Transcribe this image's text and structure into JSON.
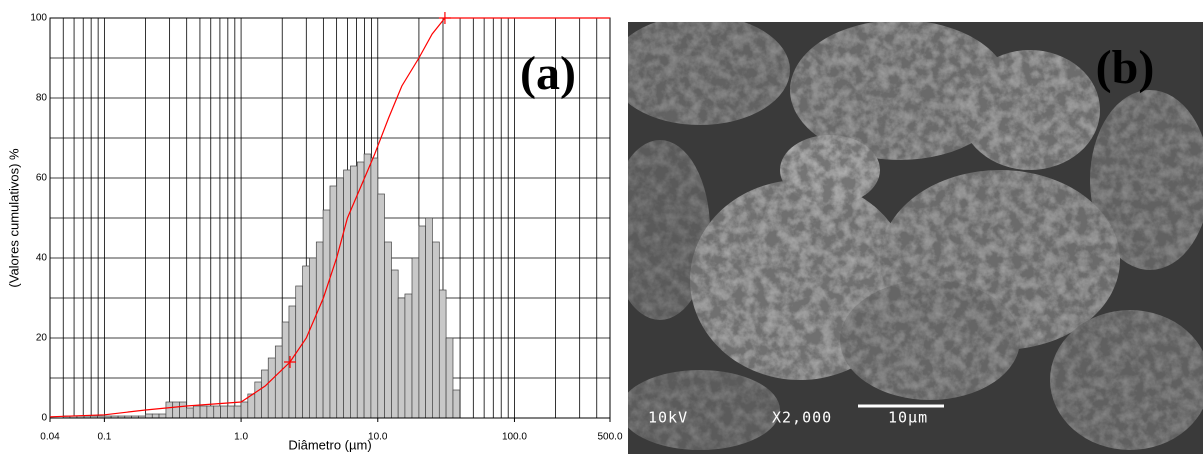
{
  "chart_data": {
    "type": "histogram",
    "panel_label": "(a)",
    "ylabel": "(Valores cumulativos) %",
    "xlabel": "Diâmetro (µm)",
    "xscale": "log",
    "xlim": [
      0.04,
      500
    ],
    "xticks": [
      0.04,
      0.1,
      {
        "value": 1,
        "label": "1.0"
      },
      {
        "value": 10,
        "label": "10.0"
      },
      {
        "value": 100,
        "label": "100.0"
      },
      {
        "value": 500,
        "label": "500.0"
      }
    ],
    "ylim": [
      0,
      100
    ],
    "yticks": [
      0,
      20,
      40,
      60,
      80,
      100
    ],
    "yminor": [
      10,
      30,
      50,
      70,
      90
    ],
    "grid": true,
    "color": "#c8c8c8",
    "bins": [
      0.05,
      0.056,
      0.063,
      0.071,
      0.079,
      0.089,
      0.1,
      0.112,
      0.126,
      0.141,
      0.158,
      0.178,
      0.2,
      0.224,
      0.251,
      0.282,
      0.316,
      0.355,
      0.398,
      0.447,
      0.501,
      0.562,
      0.631,
      0.708,
      0.794,
      0.891,
      1.0,
      1.12,
      1.26,
      1.41,
      1.58,
      1.78,
      2.0,
      2.24,
      2.51,
      2.82,
      3.16,
      3.55,
      3.98,
      4.47,
      5.01,
      5.62,
      6.31,
      7.08,
      7.94,
      8.91,
      10,
      11.2,
      12.6,
      14.1,
      15.8,
      17.8,
      20,
      22.4,
      25.1,
      28.2,
      31.6,
      35.5,
      39.8
    ],
    "values": [
      0.5,
      0.5,
      0.5,
      0.5,
      0.5,
      0.5,
      0.5,
      0.5,
      0.5,
      0.5,
      0.5,
      0.5,
      1,
      1,
      1,
      4,
      4,
      4,
      2.5,
      3,
      3,
      3,
      3,
      3,
      3,
      3,
      4,
      6,
      9,
      12,
      15,
      18,
      24,
      28,
      33,
      38,
      40,
      44,
      52,
      58,
      60,
      62,
      63,
      64,
      66,
      65,
      56,
      44,
      37,
      30,
      31,
      40,
      48,
      50,
      44,
      32,
      20,
      7
    ],
    "cumulative": {
      "color": "#ff0000",
      "x": [
        0.04,
        0.1,
        0.2,
        0.4,
        1.0,
        1.5,
        2.28,
        3,
        4,
        5,
        6,
        8,
        9.5,
        12,
        15,
        20,
        25,
        31,
        500
      ],
      "y": [
        0.3,
        0.8,
        2,
        3,
        4,
        8,
        14,
        20,
        30,
        40,
        50,
        60,
        66,
        75,
        83,
        90,
        96,
        100,
        100
      ],
      "markers": {
        "x": [
          2.28,
          31
        ],
        "y": [
          14,
          100
        ]
      }
    }
  },
  "image": {
    "panel_label": "(b)",
    "voltage": "10kV",
    "magnification": "X2,000",
    "scale_bar": "10µm"
  }
}
